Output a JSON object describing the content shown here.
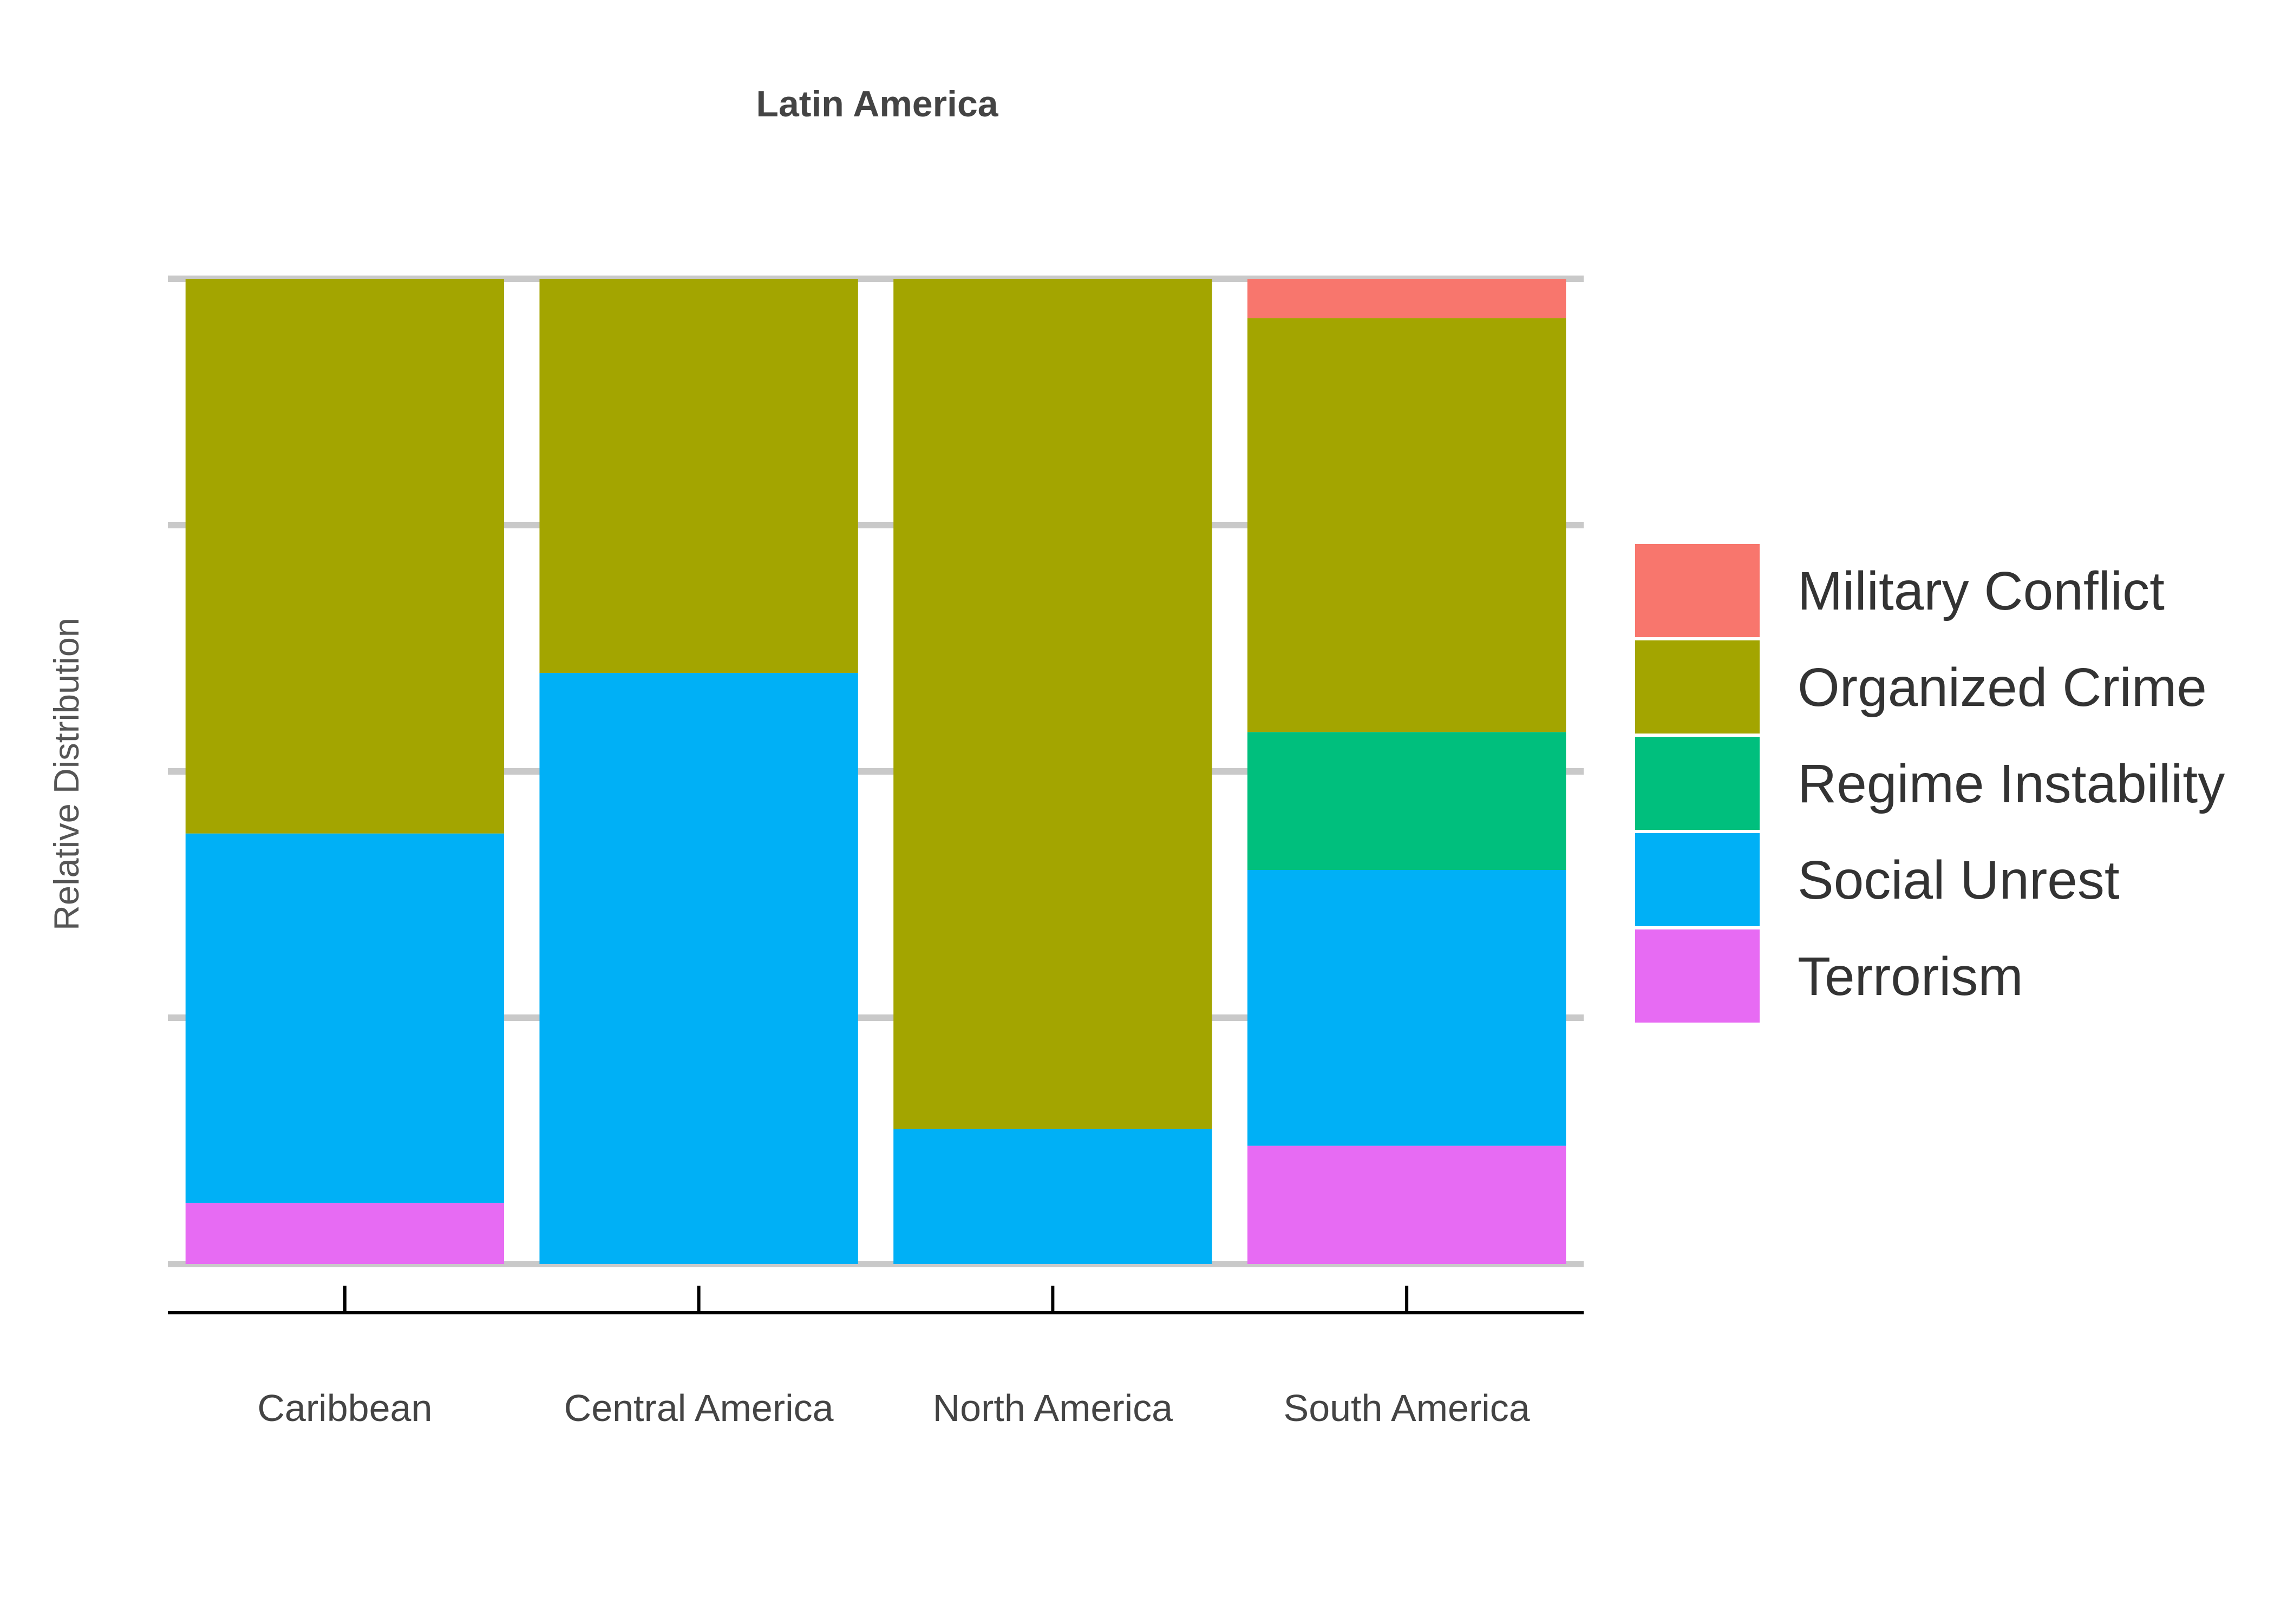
{
  "chart_data": {
    "type": "bar",
    "stacked": true,
    "normalized": true,
    "title": "Latin America",
    "xlabel": "",
    "ylabel": "Relative Distribution",
    "ylim": [
      0,
      1
    ],
    "y_tick_labels_shown": false,
    "grid": "horizontal",
    "legend_position": "right",
    "categories": [
      "Caribbean",
      "Central America",
      "North America",
      "South America"
    ],
    "series": [
      {
        "name": "Terrorism",
        "color": "#E76BF3",
        "values": [
          0.062,
          0.0,
          0.0,
          0.12
        ]
      },
      {
        "name": "Social Unrest",
        "color": "#00B0F6",
        "values": [
          0.375,
          0.6,
          0.137,
          0.28
        ]
      },
      {
        "name": "Regime Instability",
        "color": "#00BF7D",
        "values": [
          0.0,
          0.0,
          0.0,
          0.14
        ]
      },
      {
        "name": "Organized Crime",
        "color": "#A3A500",
        "values": [
          0.563,
          0.4,
          0.863,
          0.42
        ]
      },
      {
        "name": "Military Conflict",
        "color": "#F8766D",
        "values": [
          0.0,
          0.0,
          0.0,
          0.04
        ]
      }
    ],
    "legend_order": [
      "Military Conflict",
      "Organized Crime",
      "Regime Instability",
      "Social Unrest",
      "Terrorism"
    ]
  }
}
